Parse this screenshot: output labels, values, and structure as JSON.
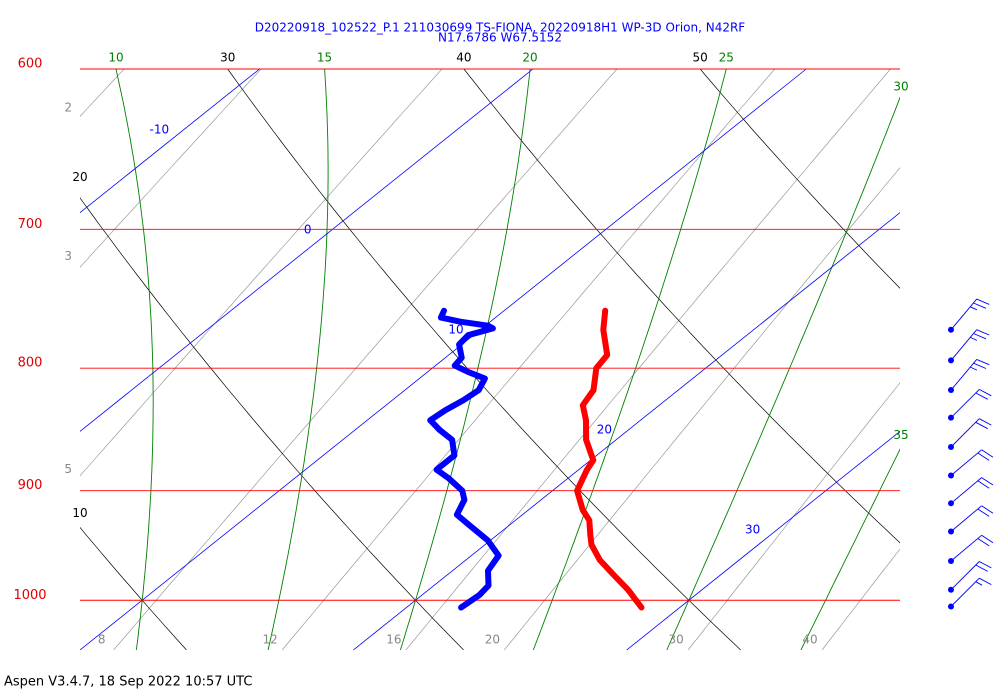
{
  "chart_data": {
    "type": "skewt",
    "title": "D20220918_102522_P.1 211030699 TS-FIONA, 20220918H1 WP-3D Orion, N42RF",
    "subtitle": "N17.6786 W67.5152",
    "note": "Aspen V3.4.7, 18 Sep 2022  10:57 UTC",
    "log_y": true,
    "ylim": [
      1049,
      600
    ],
    "yticks": [
      600,
      700,
      800,
      900,
      1000
    ],
    "xlim": [
      10,
      40
    ],
    "xticks": [
      -10,
      0,
      10,
      20,
      30
    ],
    "dry_adiabats": [
      10,
      20,
      30,
      40,
      50
    ],
    "moist_adiabats": [
      10,
      15,
      20,
      25,
      30,
      35
    ],
    "mixing_ratios": [
      2,
      3,
      5,
      8,
      12,
      16,
      20,
      30,
      40
    ],
    "series": [
      {
        "color": "#ff0000",
        "pressure": [
          757,
          771,
          790,
          800,
          817,
          829,
          841,
          857,
          874,
          882,
          900,
          917,
          926,
          939,
          948,
          962,
          976,
          990,
          1007
        ],
        "values": [
          13.7,
          14.5,
          15.8,
          16.0,
          16.9,
          17.2,
          18.0,
          18.9,
          20.1,
          20.3,
          20.9,
          22.0,
          22.7,
          23.4,
          23.9,
          24.9,
          26.1,
          27.3,
          28.6
        ]
      },
      {
        "color": "#0000ff",
        "pressure": [
          757,
          762,
          765,
          768,
          770,
          775,
          782,
          792,
          798,
          803,
          808,
          817,
          825,
          833,
          841,
          849,
          857,
          870,
          882,
          889,
          900,
          908,
          921,
          930,
          944,
          958,
          972,
          986,
          995,
          1007
        ],
        "values": [
          7.8,
          8.0,
          8.9,
          10.1,
          10.4,
          9.8,
          9.9,
          10.6,
          10.7,
          11.5,
          12.4,
          12.7,
          12.6,
          12.4,
          12.3,
          13.1,
          14.0,
          14.8,
          14.8,
          15.6,
          16.7,
          17.2,
          17.6,
          18.5,
          19.9,
          21.0,
          21.3,
          22.0,
          22.1,
          22.0
        ]
      }
    ],
    "wind": {
      "color": "#0000ff",
      "pressure": [
        771,
        794,
        817,
        839,
        863,
        887,
        911,
        936,
        963,
        990,
        1006
      ],
      "speed": [
        25,
        25,
        25,
        20,
        20,
        20,
        20,
        20,
        20,
        20,
        15
      ],
      "direction": [
        40,
        40,
        40,
        45,
        45,
        50,
        50,
        50,
        50,
        45,
        45
      ]
    }
  }
}
